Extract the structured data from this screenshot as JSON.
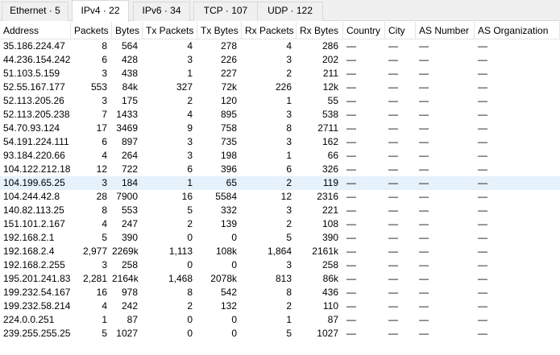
{
  "tabs": [
    {
      "label": "Ethernet · 5",
      "active": false
    },
    {
      "label": "IPv4 · 22",
      "active": true
    },
    {
      "label": "IPv6 · 34",
      "active": false
    },
    {
      "label": "TCP · 107",
      "active": false
    },
    {
      "label": "UDP · 122",
      "active": false
    }
  ],
  "columns": [
    "Address",
    "Packets",
    "Bytes",
    "Tx Packets",
    "Tx Bytes",
    "Rx Packets",
    "Rx Bytes",
    "Country",
    "City",
    "AS Number",
    "AS Organization"
  ],
  "rows": [
    [
      "35.186.224.47",
      "8",
      "564",
      "4",
      "278",
      "4",
      "286",
      "—",
      "—",
      "—",
      "—"
    ],
    [
      "44.236.154.242",
      "6",
      "428",
      "3",
      "226",
      "3",
      "202",
      "—",
      "—",
      "—",
      "—"
    ],
    [
      "51.103.5.159",
      "3",
      "438",
      "1",
      "227",
      "2",
      "211",
      "—",
      "—",
      "—",
      "—"
    ],
    [
      "52.55.167.177",
      "553",
      "84k",
      "327",
      "72k",
      "226",
      "12k",
      "—",
      "—",
      "—",
      "—"
    ],
    [
      "52.113.205.26",
      "3",
      "175",
      "2",
      "120",
      "1",
      "55",
      "—",
      "—",
      "—",
      "—"
    ],
    [
      "52.113.205.238",
      "7",
      "1433",
      "4",
      "895",
      "3",
      "538",
      "—",
      "—",
      "—",
      "—"
    ],
    [
      "54.70.93.124",
      "17",
      "3469",
      "9",
      "758",
      "8",
      "2711",
      "—",
      "—",
      "—",
      "—"
    ],
    [
      "54.191.224.111",
      "6",
      "897",
      "3",
      "735",
      "3",
      "162",
      "—",
      "—",
      "—",
      "—"
    ],
    [
      "93.184.220.66",
      "4",
      "264",
      "3",
      "198",
      "1",
      "66",
      "—",
      "—",
      "—",
      "—"
    ],
    [
      "104.122.212.187",
      "12",
      "722",
      "6",
      "396",
      "6",
      "326",
      "—",
      "—",
      "—",
      "—"
    ],
    [
      "104.199.65.25",
      "3",
      "184",
      "1",
      "65",
      "2",
      "119",
      "—",
      "—",
      "—",
      "—"
    ],
    [
      "104.244.42.8",
      "28",
      "7900",
      "16",
      "5584",
      "12",
      "2316",
      "—",
      "—",
      "—",
      "—"
    ],
    [
      "140.82.113.25",
      "8",
      "553",
      "5",
      "332",
      "3",
      "221",
      "—",
      "—",
      "—",
      "—"
    ],
    [
      "151.101.2.167",
      "4",
      "247",
      "2",
      "139",
      "2",
      "108",
      "—",
      "—",
      "—",
      "—"
    ],
    [
      "192.168.2.1",
      "5",
      "390",
      "0",
      "0",
      "5",
      "390",
      "—",
      "—",
      "—",
      "—"
    ],
    [
      "192.168.2.4",
      "2,977",
      "2269k",
      "1,113",
      "108k",
      "1,864",
      "2161k",
      "—",
      "—",
      "—",
      "—"
    ],
    [
      "192.168.2.255",
      "3",
      "258",
      "0",
      "0",
      "3",
      "258",
      "—",
      "—",
      "—",
      "—"
    ],
    [
      "195.201.241.83",
      "2,281",
      "2164k",
      "1,468",
      "2078k",
      "813",
      "86k",
      "—",
      "—",
      "—",
      "—"
    ],
    [
      "199.232.54.167",
      "16",
      "978",
      "8",
      "542",
      "8",
      "436",
      "—",
      "—",
      "—",
      "—"
    ],
    [
      "199.232.58.214",
      "4",
      "242",
      "2",
      "132",
      "2",
      "110",
      "—",
      "—",
      "—",
      "—"
    ],
    [
      "224.0.0.251",
      "1",
      "87",
      "0",
      "0",
      "1",
      "87",
      "—",
      "—",
      "—",
      "—"
    ],
    [
      "239.255.255.250",
      "5",
      "1027",
      "0",
      "0",
      "5",
      "1027",
      "—",
      "—",
      "—",
      "—"
    ]
  ],
  "selected_row_index": 10,
  "sort": {
    "column": "Address",
    "direction": "ascending"
  },
  "colors": {
    "selected_row": "#e5f1fb",
    "tab_background": "#f0f0f0",
    "grid_lines": "#e5e5e5"
  }
}
